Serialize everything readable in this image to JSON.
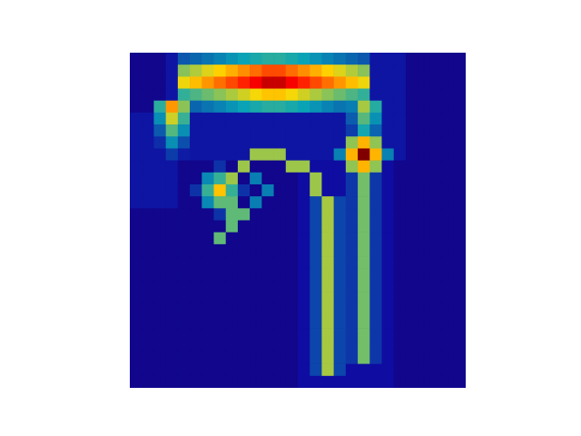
{
  "figure": {
    "type": "heatmap-overlay",
    "colormap": "jet",
    "grid": false,
    "axes_visible": false,
    "background_color": "#1e0a78"
  },
  "chart_data": {
    "type": "heatmap",
    "title": "",
    "xlabel": "",
    "ylabel": "",
    "grid_size": [
      28,
      28
    ],
    "features": [
      {
        "kind": "top-band",
        "row": 2,
        "col_start": 4,
        "col_end": 19,
        "peak": 0.95
      },
      {
        "kind": "left-curve",
        "col": 3,
        "row_start": 4,
        "row_end": 8,
        "peak": 0.7
      },
      {
        "kind": "right-curve",
        "col": 19,
        "row_start": 4,
        "row_end": 9,
        "peak": 0.55
      },
      {
        "kind": "hotspot",
        "row": 8,
        "col": 19,
        "peak": 1.0
      },
      {
        "kind": "hotspot",
        "row": 11,
        "col": 7,
        "peak": 0.65
      },
      {
        "kind": "inner-arc",
        "center_row": 13,
        "center_col": 11,
        "peak": 0.6
      },
      {
        "kind": "left-stem",
        "col": 16,
        "row_start": 12,
        "row_end": 26,
        "peak": 0.55
      },
      {
        "kind": "right-stem",
        "col": 19,
        "row_start": 10,
        "row_end": 25,
        "peak": 0.5
      }
    ]
  }
}
